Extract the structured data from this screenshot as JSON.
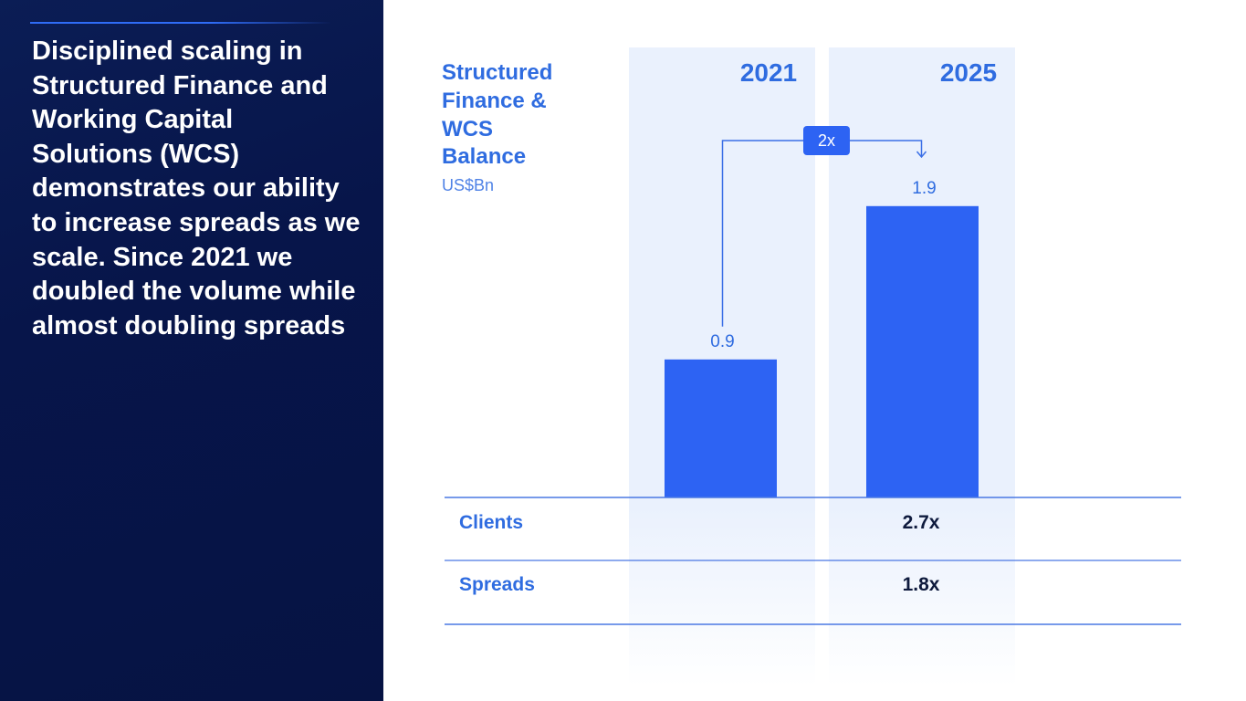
{
  "headline": "Disciplined scaling in Structured Finance and Working Capital Solutions (WCS) demonstrates our ability to increase spreads as we scale. Since 2021 we doubled the volume while almost doubling spreads",
  "colors": {
    "panel": "#07154a",
    "accent": "#2d63f3",
    "label_blue": "#2f6ce0",
    "column_shade": "#eaf1fd",
    "dark_text": "#0e1a3d"
  },
  "chart_data": {
    "type": "bar",
    "title_lines": [
      "Structured",
      "Finance &",
      "WCS",
      "Balance"
    ],
    "unit": "US$Bn",
    "categories": [
      "2021",
      "2025"
    ],
    "values": [
      0.9,
      1.9
    ],
    "value_labels": [
      "0.9",
      "1.9"
    ],
    "ylim": [
      0,
      2.0
    ],
    "annotation": "2x",
    "rows": [
      {
        "label": "Clients",
        "value": "2.7x"
      },
      {
        "label": "Spreads",
        "value": "1.8x"
      }
    ]
  }
}
